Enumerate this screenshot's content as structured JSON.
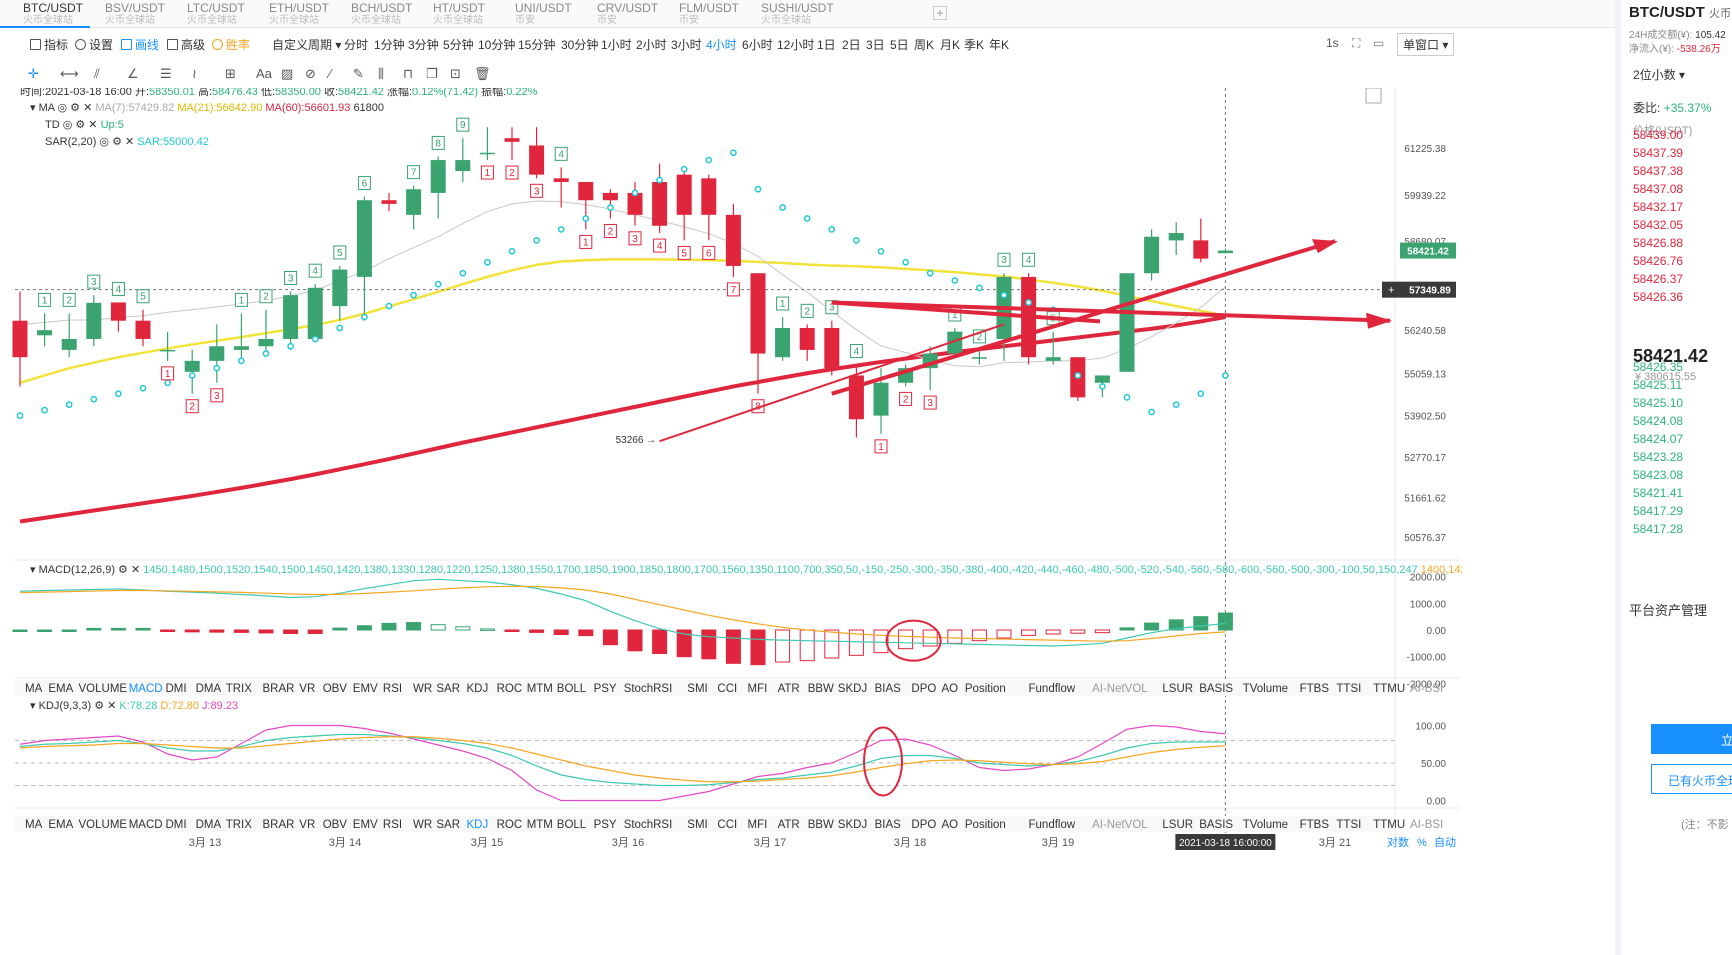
{
  "tabs": [
    {
      "name": "BTC/USDT",
      "sub": "火币全球站",
      "active": true
    },
    {
      "name": "BSV/USDT",
      "sub": "火币全球站"
    },
    {
      "name": "LTC/USDT",
      "sub": "火币全球站"
    },
    {
      "name": "ETH/USDT",
      "sub": "火币全球站"
    },
    {
      "name": "BCH/USDT",
      "sub": "火币全球站"
    },
    {
      "name": "HT/USDT",
      "sub": "火币全球站"
    },
    {
      "name": "UNI/USDT",
      "sub": "币安"
    },
    {
      "name": "CRV/USDT",
      "sub": "币安"
    },
    {
      "name": "FLM/USDT",
      "sub": "币安"
    },
    {
      "name": "SUSHI/USDT",
      "sub": "火币全球站"
    }
  ],
  "tab_add": "+",
  "toolbar": {
    "indicator": "指标",
    "settings": "设置",
    "draw": "画线",
    "advanced": "高级",
    "winrate": "胜率",
    "custom_period": "自定义周期 ▾",
    "interval": "1s",
    "window": "单窗口 ▾"
  },
  "periods": [
    "分时",
    "1分钟",
    "3分钟",
    "5分钟",
    "10分钟",
    "15分钟",
    "30分钟",
    "1小时",
    "2小时",
    "3小时",
    "4小时",
    "6小时",
    "12小时",
    "1日",
    "2日",
    "3日",
    "5日",
    "周K",
    "月K",
    "季K",
    "年K"
  ],
  "active_period": "4小时",
  "draw_tool_text": "Aa",
  "chart_data": {
    "type": "candlestick",
    "symbol": "BTC/USDT",
    "header": {
      "time": "2021-03-18 16:00",
      "open": "58350.01",
      "high": "58476.43",
      "low": "58350.00",
      "close": "58421.42",
      "change": "0.12%(71.42)",
      "amplitude": "0.22%"
    },
    "header_labels": {
      "time": "时间:",
      "open": "开:",
      "high": "高:",
      "low": "低:",
      "close": "收:",
      "change": "涨幅:",
      "amplitude": "振幅:"
    },
    "legend": {
      "ma": "MA",
      "ma7": "MA(7):57429.82",
      "ma21": "MA(21):56642.90",
      "ma60": "MA(60):56601.93",
      "td": "TD",
      "td_up": "Up:5",
      "sar": "SAR(2,20)",
      "sar_v": "SAR:55000.42",
      "ma_extra": "61800"
    },
    "candles": [
      [
        56500,
        55500,
        57300,
        54700
      ],
      [
        56100,
        56240,
        56700,
        55800
      ],
      [
        55700,
        56000,
        56700,
        55500
      ],
      [
        56000,
        56990,
        57200,
        55800
      ],
      [
        57000,
        56500,
        57000,
        56200
      ],
      [
        56500,
        56000,
        56800,
        55800
      ],
      [
        55700,
        55700,
        56200,
        55400
      ],
      [
        55100,
        55400,
        55700,
        54500
      ],
      [
        55400,
        55800,
        56400,
        54800
      ],
      [
        55700,
        55800,
        56700,
        55400
      ],
      [
        55800,
        56000,
        56800,
        55600
      ],
      [
        56000,
        57200,
        57300,
        55700
      ],
      [
        56000,
        57400,
        57500,
        55900
      ],
      [
        56900,
        57900,
        58000,
        56500
      ],
      [
        57700,
        59800,
        59900,
        56500
      ],
      [
        59800,
        59700,
        60000,
        59500
      ],
      [
        59400,
        60100,
        60200,
        59000
      ],
      [
        60000,
        60900,
        61000,
        59300
      ],
      [
        60600,
        60900,
        61500,
        60300
      ],
      [
        61100,
        61100,
        61800,
        60900
      ],
      [
        61500,
        61400,
        61800,
        60900
      ],
      [
        61300,
        60500,
        61800,
        60400
      ],
      [
        60400,
        60300,
        60700,
        59600
      ],
      [
        60300,
        59800,
        60300,
        59000
      ],
      [
        60000,
        59800,
        60100,
        59300
      ],
      [
        60000,
        59400,
        60300,
        59100
      ],
      [
        60300,
        59100,
        60800,
        58900
      ],
      [
        60500,
        59400,
        60600,
        58700
      ],
      [
        60400,
        59400,
        60500,
        58700
      ],
      [
        59400,
        58000,
        59700,
        57700
      ],
      [
        57800,
        55600,
        57800,
        54500
      ],
      [
        55500,
        56300,
        56600,
        55400
      ],
      [
        56300,
        55700,
        56400,
        55400
      ],
      [
        56300,
        55200,
        56500,
        55000
      ],
      [
        55000,
        53800,
        55300,
        53300
      ],
      [
        53900,
        54800,
        55200,
        53400
      ],
      [
        54800,
        55200,
        55300,
        54700
      ],
      [
        55200,
        55600,
        55800,
        54600
      ],
      [
        55600,
        56200,
        56300,
        55500
      ],
      [
        55500,
        55500,
        55700,
        55300
      ],
      [
        56000,
        57700,
        57800,
        55400
      ],
      [
        57700,
        55500,
        57800,
        55300
      ],
      [
        55400,
        55500,
        56200,
        55300
      ],
      [
        55500,
        54400,
        55500,
        54300
      ],
      [
        54800,
        55000,
        55000,
        54400
      ],
      [
        55100,
        57800,
        57800,
        55100
      ],
      [
        57800,
        58800,
        59000,
        57600
      ],
      [
        58700,
        58900,
        59200,
        58300
      ],
      [
        58700,
        58200,
        59300,
        58100
      ],
      [
        58350,
        58421,
        58476,
        58350
      ]
    ],
    "ma7": [
      56400,
      56450,
      56520,
      56520,
      56580,
      56640,
      56730,
      56800,
      56880,
      56960,
      57050,
      57180,
      57330,
      57600,
      57850,
      58200,
      58500,
      58800,
      59160,
      59490,
      59700,
      59780,
      59760,
      59680,
      59560,
      59400,
      59240,
      59070,
      58880,
      58620,
      58260,
      57760,
      57280,
      56760,
      56250,
      55810,
      55630,
      55420,
      55270,
      55240,
      55350,
      55370,
      55400,
      55400,
      55480,
      55730,
      56060,
      56440,
      56860,
      57430
    ],
    "ma21": [
      54800,
      55000,
      55200,
      55350,
      55500,
      55620,
      55740,
      55850,
      55950,
      56050,
      56160,
      56270,
      56380,
      56520,
      56690,
      56890,
      57090,
      57290,
      57500,
      57700,
      57880,
      58030,
      58120,
      58160,
      58180,
      58180,
      58180,
      58170,
      58160,
      58140,
      58110,
      58080,
      58040,
      58010,
      57990,
      57960,
      57920,
      57880,
      57830,
      57770,
      57710,
      57630,
      57540,
      57440,
      57320,
      57180,
      57040,
      56900,
      56770,
      56640
    ],
    "ma60": [
      51000,
      51100,
      51200,
      51300,
      51400,
      51500,
      51600,
      51700,
      51810,
      51920,
      52040,
      52160,
      52290,
      52430,
      52570,
      52710,
      52860,
      53010,
      53160,
      53300,
      53440,
      53580,
      53720,
      53860,
      54000,
      54140,
      54280,
      54420,
      54560,
      54700,
      54820,
      54940,
      55060,
      55170,
      55270,
      55370,
      55460,
      55550,
      55640,
      55720,
      55800,
      55880,
      55960,
      56040,
      56120,
      56200,
      56280,
      56370,
      56480,
      56600
    ],
    "sar": [
      53900,
      54050,
      54200,
      54350,
      54500,
      54650,
      54800,
      55000,
      55200,
      55400,
      55600,
      55800,
      56000,
      56300,
      56600,
      56900,
      57200,
      57500,
      57800,
      58100,
      58400,
      58700,
      59000,
      59300,
      59600,
      60000,
      60350,
      60650,
      60900,
      61100,
      60100,
      59600,
      59300,
      59000,
      58700,
      58400,
      58100,
      57800,
      57600,
      57400,
      57200,
      57000,
      56800,
      55000,
      54700,
      54400,
      54000,
      54200,
      54500,
      55000
    ],
    "y_ticks": [
      "61225.38",
      "59939.22",
      "58680.07",
      "57349.89",
      "56240.58",
      "55059.13",
      "53902.50",
      "52770.17",
      "51661.62",
      "50576.37"
    ],
    "y_min": 50000,
    "y_max": 62600,
    "last_price": "58421.42",
    "cross_price": "57349.89",
    "low_annotation": "53266",
    "td_marks": [
      {
        "i": 1,
        "t": "1",
        "u": true
      },
      {
        "i": 2,
        "t": "2",
        "u": true
      },
      {
        "i": 3,
        "t": "3",
        "u": true
      },
      {
        "i": 4,
        "t": "4",
        "u": true
      },
      {
        "i": 5,
        "t": "5",
        "u": true
      },
      {
        "i": 6,
        "t": "1",
        "u": false
      },
      {
        "i": 7,
        "t": "2",
        "u": false
      },
      {
        "i": 8,
        "t": "3",
        "u": false
      },
      {
        "i": 9,
        "t": "1",
        "u": true
      },
      {
        "i": 10,
        "t": "2",
        "u": true
      },
      {
        "i": 11,
        "t": "3",
        "u": true
      },
      {
        "i": 12,
        "t": "4",
        "u": true
      },
      {
        "i": 13,
        "t": "5",
        "u": true
      },
      {
        "i": 14,
        "t": "6",
        "u": true
      },
      {
        "i": 16,
        "t": "7",
        "u": true
      },
      {
        "i": 17,
        "t": "8",
        "u": true
      },
      {
        "i": 18,
        "t": "9",
        "u": true
      },
      {
        "i": 19,
        "t": "1",
        "u": false
      },
      {
        "i": 20,
        "t": "2",
        "u": false
      },
      {
        "i": 21,
        "t": "3",
        "u": false
      },
      {
        "i": 22,
        "t": "4",
        "u": true
      },
      {
        "i": 23,
        "t": "1",
        "u": false
      },
      {
        "i": 24,
        "t": "2",
        "u": false
      },
      {
        "i": 25,
        "t": "3",
        "u": false
      },
      {
        "i": 26,
        "t": "4",
        "u": false
      },
      {
        "i": 27,
        "t": "5",
        "u": false
      },
      {
        "i": 28,
        "t": "6",
        "u": false
      },
      {
        "i": 29,
        "t": "7",
        "u": false
      },
      {
        "i": 30,
        "t": "8",
        "u": false
      },
      {
        "i": 31,
        "t": "1",
        "u": true
      },
      {
        "i": 32,
        "t": "2",
        "u": true
      },
      {
        "i": 33,
        "t": "3",
        "u": true
      },
      {
        "i": 34,
        "t": "4",
        "u": true
      },
      {
        "i": 35,
        "t": "1",
        "u": false
      },
      {
        "i": 36,
        "t": "2",
        "u": false
      },
      {
        "i": 37,
        "t": "3",
        "u": false
      },
      {
        "i": 38,
        "t": "1",
        "u": true
      },
      {
        "i": 39,
        "t": "2",
        "u": true
      },
      {
        "i": 40,
        "t": "3",
        "u": true
      },
      {
        "i": 41,
        "t": "4",
        "u": true
      },
      {
        "i": 42,
        "t": "5",
        "u": true
      }
    ],
    "macd": {
      "label": "MACD(12,26,9)",
      "dif": [
        1450,
        1480,
        1500,
        1520,
        1540,
        1500,
        1450,
        1420,
        1380,
        1330,
        1280,
        1220,
        1250,
        1380,
        1550,
        1700,
        1850,
        1900,
        1850,
        1800,
        1700,
        1560,
        1350,
        1100,
        700,
        350,
        50,
        -150,
        -250,
        -300,
        -350,
        -380,
        -400,
        -420,
        -440,
        -460,
        -480,
        -500,
        -520,
        -540,
        -560,
        -580,
        -600,
        -560,
        -500,
        -300,
        -100,
        50,
        150,
        247
      ],
      "dea": [
        1400,
        1420,
        1440,
        1460,
        1480,
        1480,
        1470,
        1450,
        1430,
        1410,
        1380,
        1350,
        1330,
        1340,
        1370,
        1420,
        1470,
        1530,
        1580,
        1620,
        1640,
        1630,
        1580,
        1500,
        1350,
        1150,
        950,
        750,
        550,
        380,
        230,
        100,
        0,
        -80,
        -150,
        -200,
        -240,
        -270,
        -300,
        -320,
        -340,
        -360,
        -380,
        -400,
        -420,
        -400,
        -320,
        -220,
        -130,
        -71
      ],
      "macd": "MACD:636.17",
      "hist": [
        0,
        0,
        0,
        60,
        60,
        60,
        -50,
        -70,
        -80,
        -90,
        -110,
        -130,
        -130,
        70,
        160,
        250,
        280,
        200,
        120,
        40,
        -30,
        -90,
        -170,
        -210,
        -550,
        -780,
        -880,
        -1000,
        -1080,
        -1250,
        -1300,
        -1200,
        -1150,
        -1050,
        -950,
        -850,
        -700,
        -600,
        -500,
        -400,
        -300,
        -200,
        -150,
        -120,
        -100,
        80,
        260,
        380,
        500,
        636
      ],
      "ticks": [
        "2000.00",
        "1000.00",
        "0.00",
        "-1000.00",
        "-2000.00"
      ],
      "min": -2100,
      "max": 2100
    },
    "kdj": {
      "label": "KDJ(9,3,3)",
      "k": "K:78.28",
      "d": "D:72.80",
      "j": "J:89.23",
      "kline": [
        72,
        75,
        76,
        78,
        80,
        76,
        70,
        66,
        66,
        72,
        80,
        84,
        86,
        88,
        88,
        86,
        84,
        80,
        76,
        70,
        60,
        46,
        34,
        28,
        24,
        22,
        20,
        20,
        21,
        24,
        28,
        30,
        34,
        38,
        46,
        56,
        60,
        60,
        56,
        50,
        48,
        46,
        48,
        52,
        60,
        70,
        76,
        78,
        78,
        78
      ],
      "dline": [
        70,
        72,
        73,
        74,
        76,
        76,
        74,
        72,
        70,
        70,
        73,
        76,
        79,
        82,
        84,
        85,
        85,
        83,
        80,
        76,
        70,
        62,
        54,
        46,
        40,
        34,
        30,
        27,
        25,
        25,
        26,
        28,
        30,
        33,
        38,
        44,
        49,
        53,
        54,
        53,
        51,
        49,
        48,
        49,
        52,
        58,
        64,
        68,
        71,
        73
      ],
      "jline": [
        75,
        80,
        82,
        84,
        86,
        78,
        62,
        54,
        58,
        76,
        94,
        100,
        100,
        100,
        96,
        90,
        82,
        74,
        66,
        56,
        40,
        14,
        0,
        0,
        0,
        0,
        0,
        6,
        12,
        22,
        32,
        36,
        44,
        50,
        64,
        80,
        82,
        74,
        60,
        44,
        40,
        42,
        48,
        58,
        76,
        95,
        100,
        98,
        92,
        89
      ],
      "ticks": [
        "100.00",
        "50.00",
        "0.00"
      ]
    },
    "x_ticks": [
      "3月 13",
      "3月 14",
      "3月 15",
      "3月 16",
      "3月 17",
      "3月 18",
      "3月 19",
      "3月 20",
      "3月 21"
    ],
    "time_label": "2021-03-18 16:00:00"
  },
  "indicators": [
    "MA",
    "EMA",
    "VOLUME",
    "MACD",
    "DMI",
    "DMA",
    "TRIX",
    "BRAR",
    "VR",
    "OBV",
    "EMV",
    "RSI",
    "WR",
    "SAR",
    "KDJ",
    "ROC",
    "MTM",
    "BOLL",
    "PSY",
    "StochRSI",
    "SMI",
    "CCI",
    "MFI",
    "ATR",
    "BBW",
    "SKDJ",
    "BIAS",
    "DPO",
    "AO",
    "Position",
    "Fundflow",
    "AI-NetVOL",
    "LSUR",
    "BASIS",
    "TVolume",
    "FTBS",
    "TTSI",
    "TTMU",
    "AI-BSI"
  ],
  "active_indicators": [
    "MACD",
    "KDJ"
  ],
  "axis_controls": {
    "log": "对数",
    "pct": "%",
    "auto": "自动"
  },
  "sidebar": {
    "title": "BTC/USDT",
    "title_sub": "火币",
    "vol_label": "24H成交额(¥):",
    "vol_value": "105.42",
    "inflow_label": "净流入(¥):",
    "inflow_value": "-538.26万",
    "precision": "2位小数 ▾",
    "ratio_label": "委比:",
    "ratio_value": "+35.37%",
    "price_head": "价格(USDT)",
    "asks": [
      "58439.00",
      "58437.39",
      "58437.38",
      "58437.08",
      "58432.17",
      "58432.05",
      "58426.88",
      "58426.76",
      "58426.37",
      "58426.36"
    ],
    "last": "58421.42",
    "last_cny": "¥ 380615.55",
    "bids": [
      "58426.35",
      "58425.11",
      "58425.10",
      "58424.08",
      "58424.07",
      "58423.28",
      "58423.08",
      "58421.41",
      "58417.29",
      "58417.28"
    ],
    "assets": "平台资产管理",
    "btn1": "立",
    "btn2": "已有火币全球",
    "note": "(注：不影"
  }
}
